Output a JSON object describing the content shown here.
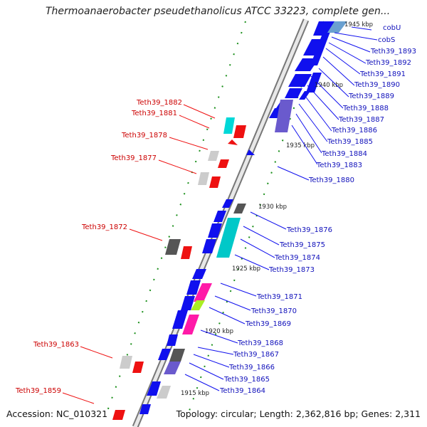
{
  "title": "Thermoanaerobacter pseudethanolicus ATCC 33223, complete gen...",
  "accession": "Accession: NC_010321",
  "topology": "Topology: circular; Length: 2,362,816 bp; Genes: 2,311",
  "colors": {
    "forward_gene": "#1010ee",
    "reverse_gene": "#ee1111",
    "backbone": "#999999",
    "red_label": "#cc0000",
    "blue_label": "#1010bb"
  },
  "kbp_marks": [
    "1945 kbp",
    "1940 kbp",
    "1935 kbp",
    "1930 kbp",
    "1925 kbp",
    "1920 kbp",
    "1915 kbp"
  ],
  "left_labels": [
    "Teth39_1882",
    "Teth39_1881",
    "Teth39_1878",
    "Teth39_1877",
    "Teth39_1872",
    "Teth39_1863",
    "Teth39_1859"
  ],
  "right_labels": [
    "cobU",
    "cobS",
    "Teth39_1893",
    "Teth39_1892",
    "Teth39_1891",
    "Teth39_1890",
    "Teth39_1889",
    "Teth39_1888",
    "Teth39_1887",
    "Teth39_1886",
    "Teth39_1885",
    "Teth39_1884",
    "Teth39_1883",
    "Teth39_1880",
    "Teth39_1876",
    "Teth39_1875",
    "Teth39_1874",
    "Teth39_1873",
    "Teth39_1871",
    "Teth39_1870",
    "Teth39_1869",
    "Teth39_1868",
    "Teth39_1867",
    "Teth39_1866",
    "Teth39_1865",
    "Teth39_1864"
  ]
}
